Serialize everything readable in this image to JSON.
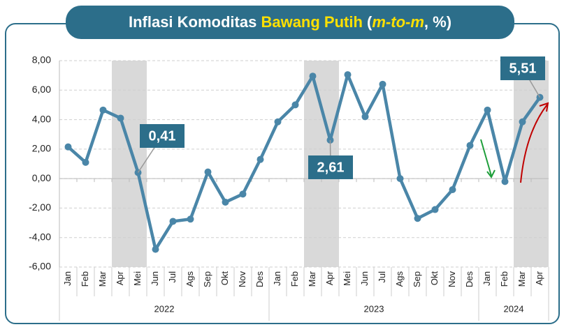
{
  "chart_data": {
    "type": "line",
    "title_parts": [
      "Inflasi Komoditas ",
      "Bawang Putih",
      " (",
      "m-to-m",
      ", %)"
    ],
    "categories": [
      "Jan",
      "Feb",
      "Mar",
      "Apr",
      "Mei",
      "Jun",
      "Jul",
      "Ags",
      "Sep",
      "Okt",
      "Nov",
      "Des",
      "Jan",
      "Feb",
      "Mar",
      "Apr",
      "Mei",
      "Jun",
      "Jul",
      "Ags",
      "Sep",
      "Okt",
      "Nov",
      "Des",
      "Jan",
      "Feb",
      "Mar",
      "Apr"
    ],
    "groups": [
      {
        "label": "2022",
        "count": 12
      },
      {
        "label": "2023",
        "count": 12
      },
      {
        "label": "2024",
        "count": 4
      }
    ],
    "series": [
      {
        "name": "Bawang Putih",
        "color": "#4a86a8",
        "values": [
          2.15,
          1.1,
          4.65,
          4.1,
          0.41,
          -4.8,
          -2.9,
          -2.75,
          0.45,
          -1.6,
          -1.05,
          1.3,
          3.85,
          5.0,
          6.95,
          2.61,
          7.05,
          4.2,
          6.4,
          0.0,
          -2.7,
          -2.1,
          -0.75,
          2.25,
          4.65,
          -0.2,
          3.85,
          5.51
        ],
        "value_labels": [
          null,
          null,
          null,
          null,
          "0,41",
          null,
          null,
          null,
          null,
          null,
          null,
          null,
          null,
          null,
          null,
          "2,61",
          null,
          null,
          null,
          null,
          null,
          null,
          null,
          null,
          null,
          null,
          null,
          "5,51"
        ]
      }
    ],
    "shaded_categories": [
      [
        3,
        4
      ],
      [
        14,
        15
      ],
      [
        26,
        27
      ]
    ],
    "ylim": [
      -6,
      8
    ],
    "yticks": [
      {
        "value": -6,
        "label": "-6,00"
      },
      {
        "value": -4,
        "label": "-4,00"
      },
      {
        "value": -2,
        "label": "-2,00"
      },
      {
        "value": 0,
        "label": "0,00"
      },
      {
        "value": 2,
        "label": "2,00"
      },
      {
        "value": 4,
        "label": "4,00"
      },
      {
        "value": 6,
        "label": "6,00"
      },
      {
        "value": 8,
        "label": "8,00"
      }
    ],
    "grid": true
  }
}
